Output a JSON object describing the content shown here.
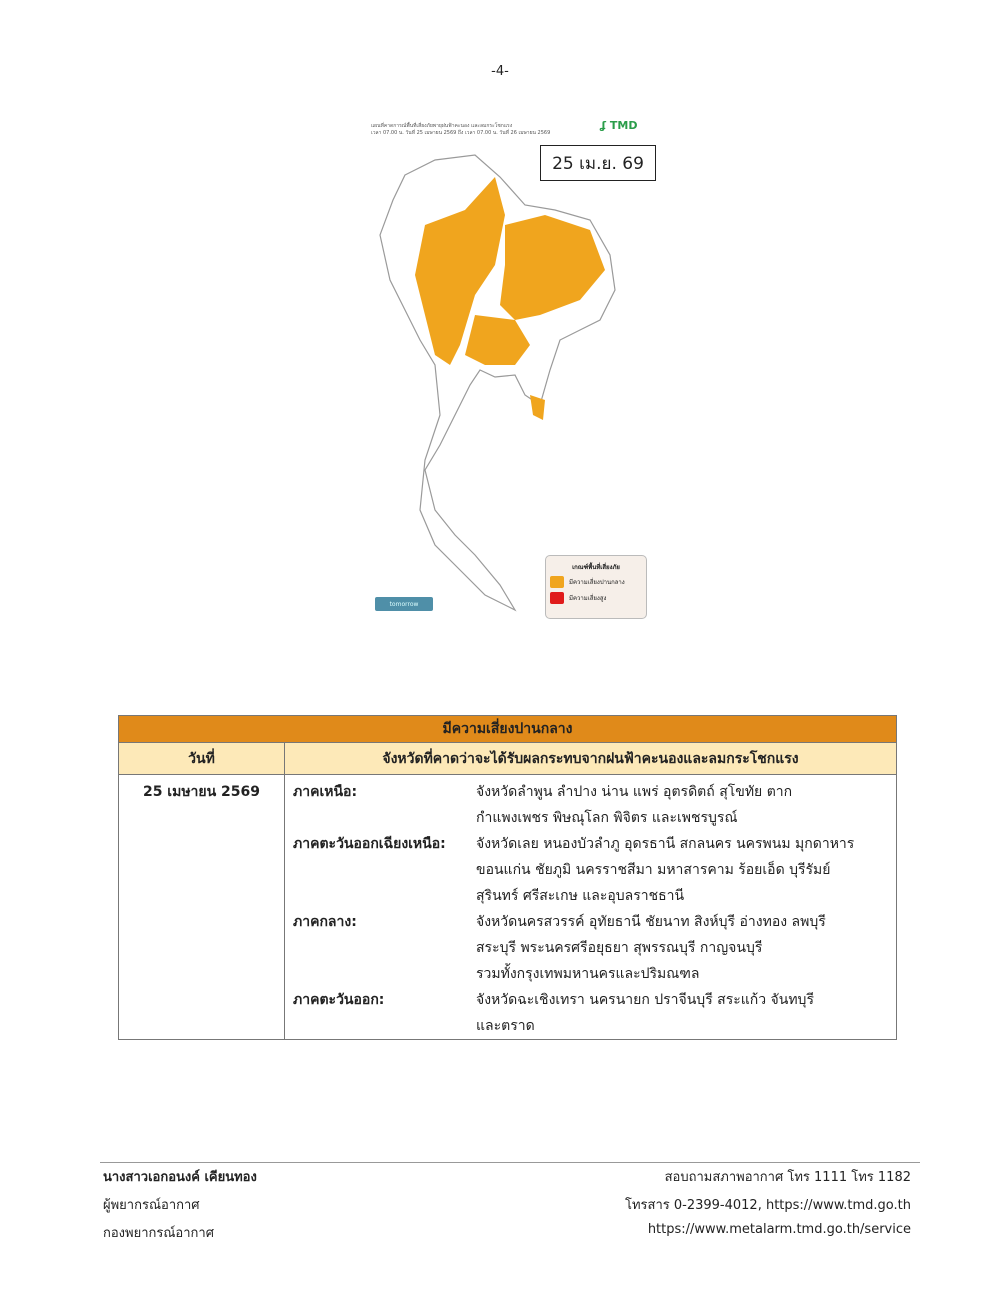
{
  "page_number": "-4-",
  "map": {
    "title_line1": "แผนที่คาดการณ์พื้นที่เสี่ยงภัยพายุฝนฟ้าคะนอง และลมกระโชกแรง",
    "title_line2": "เวลา 07.00 น. วันที่ 25 เมษายน 2569 ถึง เวลา 07.00 น. วันที่ 26 เมษายน 2569",
    "logo": "TMD",
    "date_label": "25 เม.ย. 69",
    "tomorrow_button": "tomorrow",
    "legend": {
      "title": "เกณฑ์พื้นที่เสี่ยงภัย",
      "items": [
        {
          "label": "มีความเสี่ยงปานกลาง",
          "color": "#f0a51e"
        },
        {
          "label": "มีความเสี่ยงสูง",
          "color": "#e01b1b"
        }
      ]
    },
    "colors": {
      "moderate": "#f0a51e",
      "border": "#9a9a9a"
    }
  },
  "table": {
    "title": "มีความเสี่ยงปานกลาง",
    "headers": [
      "วันที่",
      "จังหวัดที่คาดว่าจะได้รับผลกระทบจากฝนฟ้าคะนองและลมกระโชกแรง"
    ],
    "date": "25 เมษายน 2569",
    "regions": [
      {
        "label": "ภาคเหนือ:",
        "lines": [
          "จังหวัดลำพูน ลำปาง น่าน แพร่ อุตรดิตถ์ สุโขทัย ตาก",
          "กำแพงเพชร พิษณุโลก พิจิตร และเพชรบูรณ์"
        ]
      },
      {
        "label": "ภาคตะวันออกเฉียงเหนือ:",
        "lines": [
          "จังหวัดเลย หนองบัวลำภู อุดรธานี สกลนคร นครพนม มุกดาหาร",
          "ขอนแก่น ชัยภูมิ นครราชสีมา มหาสารคาม ร้อยเอ็ด บุรีรัมย์",
          "สุรินทร์ ศรีสะเกษ และอุบลราชธานี"
        ]
      },
      {
        "label": "ภาคกลาง:",
        "lines": [
          "จังหวัดนครสวรรค์ อุทัยธานี ชัยนาท สิงห์บุรี อ่างทอง ลพบุรี",
          "สระบุรี พระนครศรีอยุธยา สุพรรณบุรี กาญจนบุรี",
          "รวมทั้งกรุงเทพมหานครและปริมณฑล"
        ]
      },
      {
        "label": "ภาคตะวันออก:",
        "lines": [
          "จังหวัดฉะเชิงเทรา นครนายก ปราจีนบุรี สระแก้ว จันทบุรี",
          "และตราด"
        ]
      }
    ],
    "colors": {
      "title_bg": "#e08a1a",
      "header_bg": "#fde9b8"
    }
  },
  "footer": {
    "left": [
      "นางสาวเอกอนงค์ เคียนทอง",
      "ผู้พยากรณ์อากาศ",
      "กองพยากรณ์อากาศ"
    ],
    "right": [
      "สอบถามสภาพอากาศ โทร 1111 โทร 1182",
      "โทรสาร 0-2399-4012, https://www.tmd.go.th",
      "https://www.metalarm.tmd.go.th/service"
    ]
  }
}
